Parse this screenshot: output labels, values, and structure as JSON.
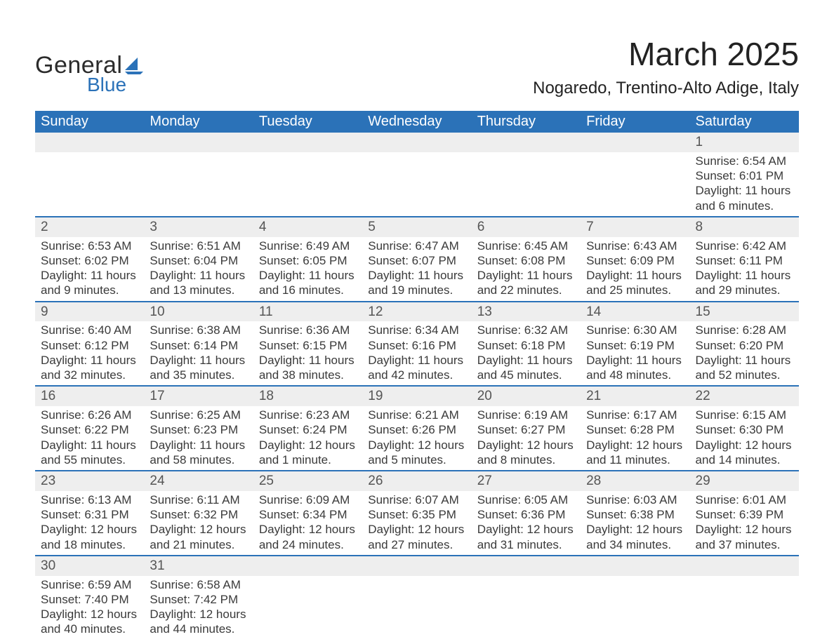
{
  "brand": {
    "word1": "General",
    "word2": "Blue"
  },
  "title": "March 2025",
  "location": "Nogaredo, Trentino-Alto Adige, Italy",
  "colors": {
    "brand_blue": "#2b72b8",
    "header_text": "#ffffff",
    "daynum_bg": "#eeeeee",
    "body_text": "#3a3a3a",
    "page_bg": "#ffffff"
  },
  "typography": {
    "title_fontsize": 46,
    "location_fontsize": 24,
    "dayheader_fontsize": 20,
    "cell_fontsize": 17
  },
  "day_headers": [
    "Sunday",
    "Monday",
    "Tuesday",
    "Wednesday",
    "Thursday",
    "Friday",
    "Saturday"
  ],
  "weeks": [
    [
      null,
      null,
      null,
      null,
      null,
      null,
      {
        "n": "1",
        "sunrise": "Sunrise: 6:54 AM",
        "sunset": "Sunset: 6:01 PM",
        "daylight": "Daylight: 11 hours and 6 minutes."
      }
    ],
    [
      {
        "n": "2",
        "sunrise": "Sunrise: 6:53 AM",
        "sunset": "Sunset: 6:02 PM",
        "daylight": "Daylight: 11 hours and 9 minutes."
      },
      {
        "n": "3",
        "sunrise": "Sunrise: 6:51 AM",
        "sunset": "Sunset: 6:04 PM",
        "daylight": "Daylight: 11 hours and 13 minutes."
      },
      {
        "n": "4",
        "sunrise": "Sunrise: 6:49 AM",
        "sunset": "Sunset: 6:05 PM",
        "daylight": "Daylight: 11 hours and 16 minutes."
      },
      {
        "n": "5",
        "sunrise": "Sunrise: 6:47 AM",
        "sunset": "Sunset: 6:07 PM",
        "daylight": "Daylight: 11 hours and 19 minutes."
      },
      {
        "n": "6",
        "sunrise": "Sunrise: 6:45 AM",
        "sunset": "Sunset: 6:08 PM",
        "daylight": "Daylight: 11 hours and 22 minutes."
      },
      {
        "n": "7",
        "sunrise": "Sunrise: 6:43 AM",
        "sunset": "Sunset: 6:09 PM",
        "daylight": "Daylight: 11 hours and 25 minutes."
      },
      {
        "n": "8",
        "sunrise": "Sunrise: 6:42 AM",
        "sunset": "Sunset: 6:11 PM",
        "daylight": "Daylight: 11 hours and 29 minutes."
      }
    ],
    [
      {
        "n": "9",
        "sunrise": "Sunrise: 6:40 AM",
        "sunset": "Sunset: 6:12 PM",
        "daylight": "Daylight: 11 hours and 32 minutes."
      },
      {
        "n": "10",
        "sunrise": "Sunrise: 6:38 AM",
        "sunset": "Sunset: 6:14 PM",
        "daylight": "Daylight: 11 hours and 35 minutes."
      },
      {
        "n": "11",
        "sunrise": "Sunrise: 6:36 AM",
        "sunset": "Sunset: 6:15 PM",
        "daylight": "Daylight: 11 hours and 38 minutes."
      },
      {
        "n": "12",
        "sunrise": "Sunrise: 6:34 AM",
        "sunset": "Sunset: 6:16 PM",
        "daylight": "Daylight: 11 hours and 42 minutes."
      },
      {
        "n": "13",
        "sunrise": "Sunrise: 6:32 AM",
        "sunset": "Sunset: 6:18 PM",
        "daylight": "Daylight: 11 hours and 45 minutes."
      },
      {
        "n": "14",
        "sunrise": "Sunrise: 6:30 AM",
        "sunset": "Sunset: 6:19 PM",
        "daylight": "Daylight: 11 hours and 48 minutes."
      },
      {
        "n": "15",
        "sunrise": "Sunrise: 6:28 AM",
        "sunset": "Sunset: 6:20 PM",
        "daylight": "Daylight: 11 hours and 52 minutes."
      }
    ],
    [
      {
        "n": "16",
        "sunrise": "Sunrise: 6:26 AM",
        "sunset": "Sunset: 6:22 PM",
        "daylight": "Daylight: 11 hours and 55 minutes."
      },
      {
        "n": "17",
        "sunrise": "Sunrise: 6:25 AM",
        "sunset": "Sunset: 6:23 PM",
        "daylight": "Daylight: 11 hours and 58 minutes."
      },
      {
        "n": "18",
        "sunrise": "Sunrise: 6:23 AM",
        "sunset": "Sunset: 6:24 PM",
        "daylight": "Daylight: 12 hours and 1 minute."
      },
      {
        "n": "19",
        "sunrise": "Sunrise: 6:21 AM",
        "sunset": "Sunset: 6:26 PM",
        "daylight": "Daylight: 12 hours and 5 minutes."
      },
      {
        "n": "20",
        "sunrise": "Sunrise: 6:19 AM",
        "sunset": "Sunset: 6:27 PM",
        "daylight": "Daylight: 12 hours and 8 minutes."
      },
      {
        "n": "21",
        "sunrise": "Sunrise: 6:17 AM",
        "sunset": "Sunset: 6:28 PM",
        "daylight": "Daylight: 12 hours and 11 minutes."
      },
      {
        "n": "22",
        "sunrise": "Sunrise: 6:15 AM",
        "sunset": "Sunset: 6:30 PM",
        "daylight": "Daylight: 12 hours and 14 minutes."
      }
    ],
    [
      {
        "n": "23",
        "sunrise": "Sunrise: 6:13 AM",
        "sunset": "Sunset: 6:31 PM",
        "daylight": "Daylight: 12 hours and 18 minutes."
      },
      {
        "n": "24",
        "sunrise": "Sunrise: 6:11 AM",
        "sunset": "Sunset: 6:32 PM",
        "daylight": "Daylight: 12 hours and 21 minutes."
      },
      {
        "n": "25",
        "sunrise": "Sunrise: 6:09 AM",
        "sunset": "Sunset: 6:34 PM",
        "daylight": "Daylight: 12 hours and 24 minutes."
      },
      {
        "n": "26",
        "sunrise": "Sunrise: 6:07 AM",
        "sunset": "Sunset: 6:35 PM",
        "daylight": "Daylight: 12 hours and 27 minutes."
      },
      {
        "n": "27",
        "sunrise": "Sunrise: 6:05 AM",
        "sunset": "Sunset: 6:36 PM",
        "daylight": "Daylight: 12 hours and 31 minutes."
      },
      {
        "n": "28",
        "sunrise": "Sunrise: 6:03 AM",
        "sunset": "Sunset: 6:38 PM",
        "daylight": "Daylight: 12 hours and 34 minutes."
      },
      {
        "n": "29",
        "sunrise": "Sunrise: 6:01 AM",
        "sunset": "Sunset: 6:39 PM",
        "daylight": "Daylight: 12 hours and 37 minutes."
      }
    ],
    [
      {
        "n": "30",
        "sunrise": "Sunrise: 6:59 AM",
        "sunset": "Sunset: 7:40 PM",
        "daylight": "Daylight: 12 hours and 40 minutes."
      },
      {
        "n": "31",
        "sunrise": "Sunrise: 6:58 AM",
        "sunset": "Sunset: 7:42 PM",
        "daylight": "Daylight: 12 hours and 44 minutes."
      },
      null,
      null,
      null,
      null,
      null
    ]
  ]
}
